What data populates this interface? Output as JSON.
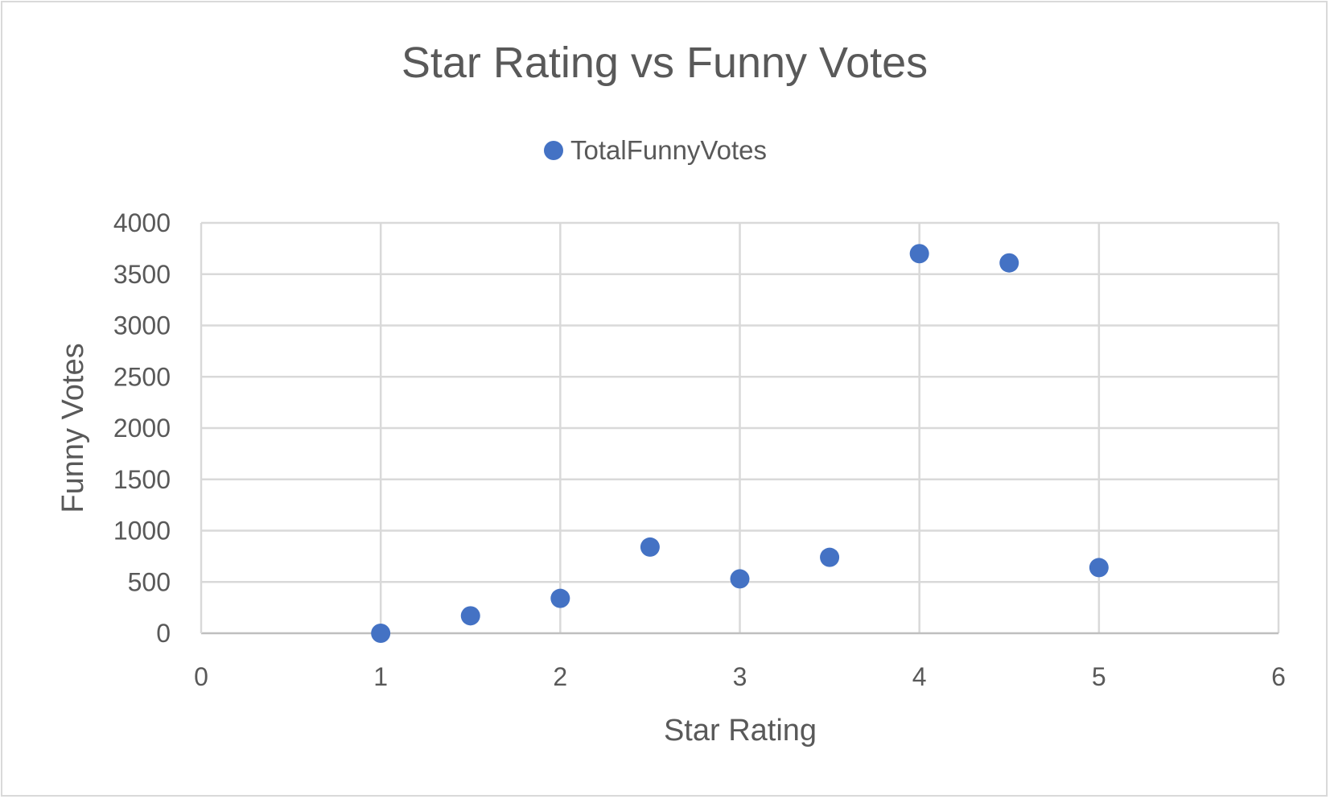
{
  "chart_data": {
    "type": "scatter",
    "title": "Star Rating vs Funny Votes",
    "xlabel": "Star Rating",
    "ylabel": "Funny Votes",
    "xlim": [
      0,
      6
    ],
    "ylim": [
      0,
      4000
    ],
    "x_ticks": [
      "0",
      "1",
      "2",
      "3",
      "4",
      "5",
      "6"
    ],
    "y_ticks": [
      "0",
      "500",
      "1000",
      "1500",
      "2000",
      "2500",
      "3000",
      "3500",
      "4000"
    ],
    "grid": true,
    "legend_position": "top",
    "series": [
      {
        "name": "TotalFunnyVotes",
        "color": "#4472c4",
        "x": [
          1,
          1.5,
          2,
          2.5,
          3,
          3.5,
          4,
          4.5,
          5
        ],
        "y": [
          0,
          170,
          340,
          840,
          530,
          740,
          3700,
          3610,
          640
        ]
      }
    ]
  }
}
